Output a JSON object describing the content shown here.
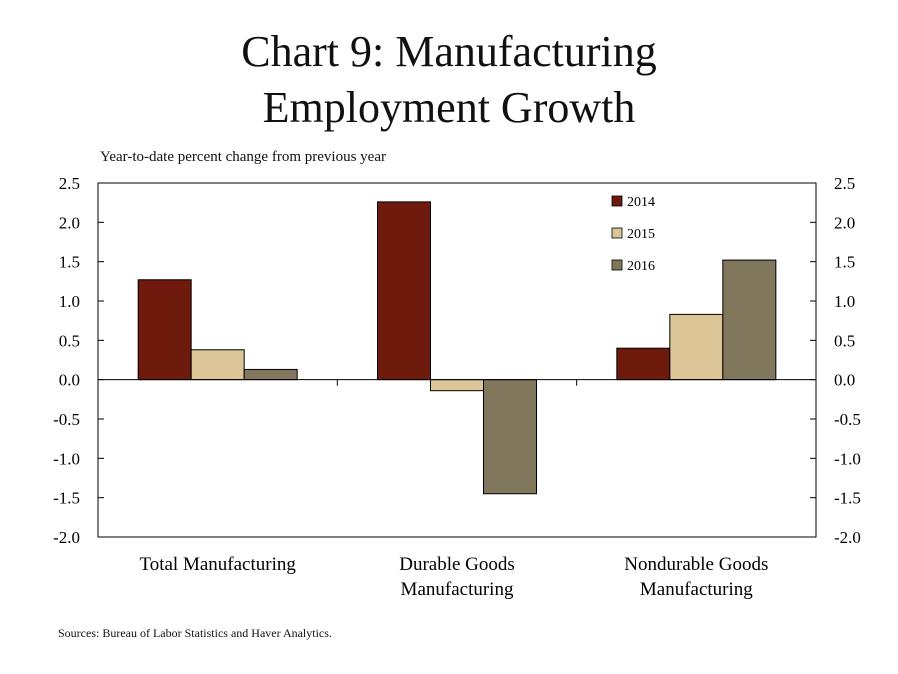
{
  "chart_data": {
    "type": "bar",
    "title": "Chart 9: Manufacturing Employment Growth",
    "title_lines": [
      "Chart 9: Manufacturing",
      "Employment Growth"
    ],
    "subtitle": "Year-to-date percent change from previous year",
    "categories": [
      [
        "Total Manufacturing"
      ],
      [
        "Durable Goods",
        "Manufacturing"
      ],
      [
        "Nondurable Goods",
        "Manufacturing"
      ]
    ],
    "series": [
      {
        "name": "2014",
        "color": "#6e1a0d",
        "values": [
          1.27,
          2.26,
          0.4
        ]
      },
      {
        "name": "2015",
        "color": "#dcc596",
        "values": [
          0.38,
          -0.14,
          0.83
        ]
      },
      {
        "name": "2016",
        "color": "#81775c",
        "values": [
          0.13,
          -1.45,
          1.52
        ]
      }
    ],
    "ylim": [
      -2.0,
      2.5
    ],
    "yticks": [
      "2.5",
      "2.0",
      "1.5",
      "1.0",
      "0.5",
      "0.0",
      "-0.5",
      "-1.0",
      "-1.5",
      "-2.0"
    ],
    "ytick_values": [
      2.5,
      2.0,
      1.5,
      1.0,
      0.5,
      0.0,
      -0.5,
      -1.0,
      -1.5,
      -2.0
    ],
    "xlabel": "",
    "ylabel": "",
    "grid": false,
    "legend_position": "top-right",
    "source": "Sources: Bureau of Labor Statistics and Haver Analytics."
  }
}
